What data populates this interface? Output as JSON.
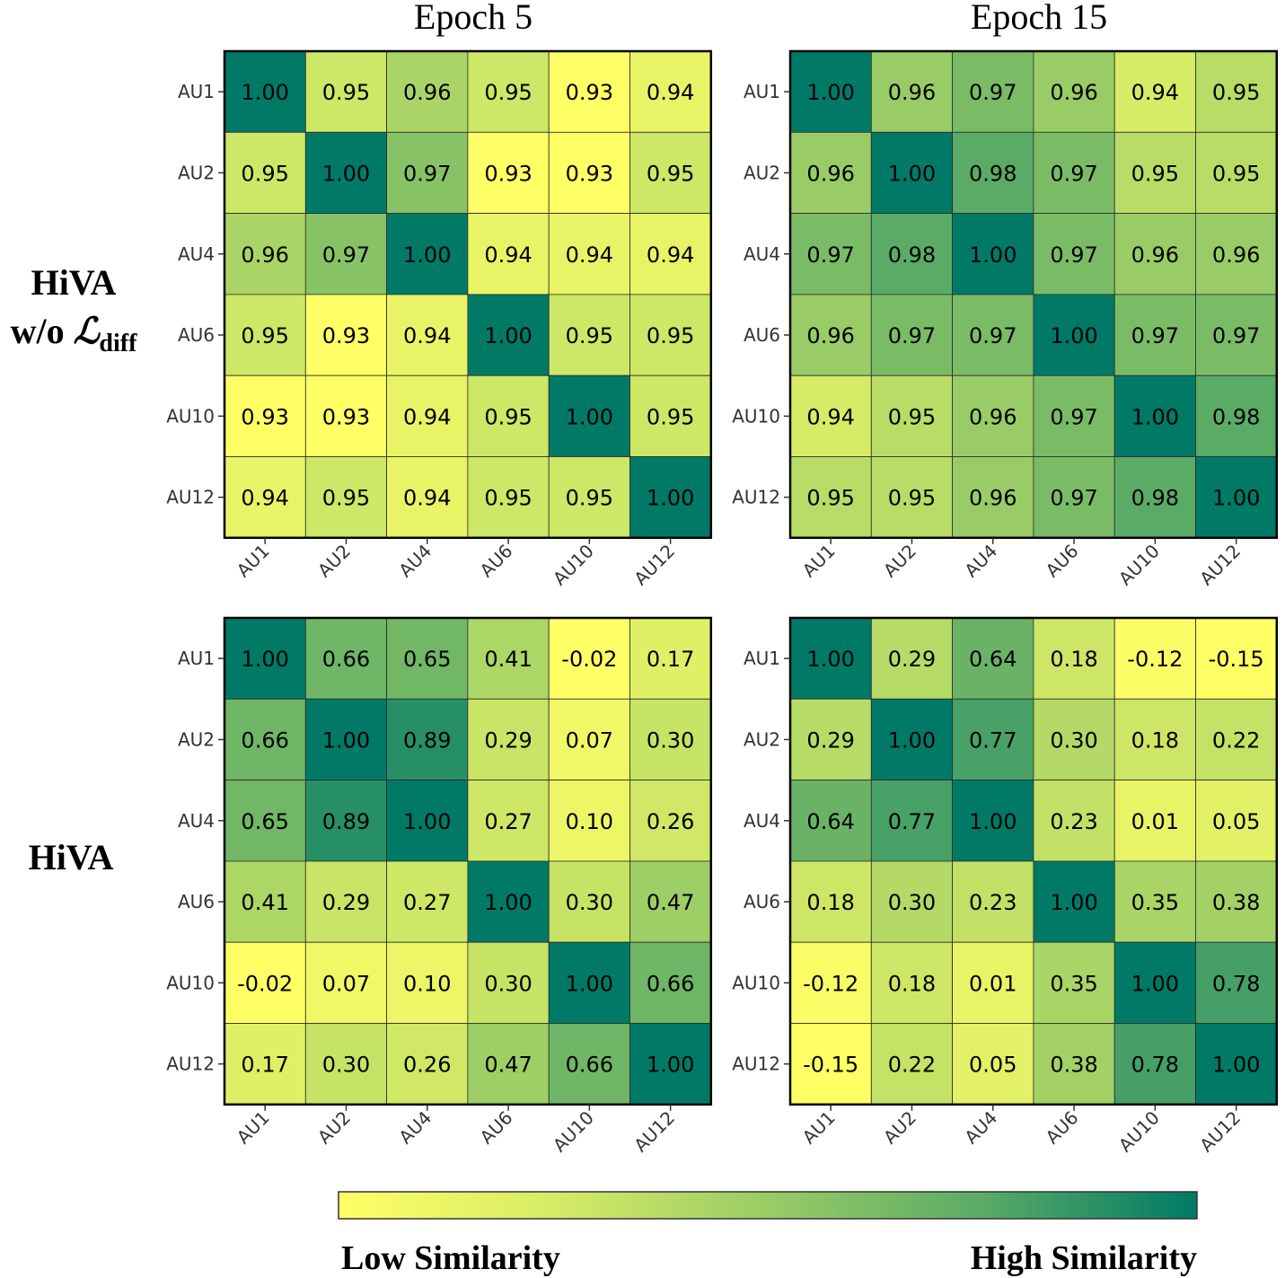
{
  "columns": [
    "Epoch 5",
    "Epoch 15"
  ],
  "rows": [
    {
      "line1": "HiVA",
      "line2_prefix": "w/o ",
      "line2_symbol": "ℒ",
      "line2_sub": "diff"
    },
    {
      "line1": "HiVA"
    }
  ],
  "colorbar": {
    "low_label": "Low Similarity",
    "high_label": "High Similarity",
    "colors": [
      "#ffff66",
      "#d6eb66",
      "#99cc66",
      "#5aab66",
      "#007a66"
    ]
  },
  "chart_data": [
    {
      "type": "heatmap",
      "title": "Epoch 5",
      "row_label": "HiVA w/o ℒdiff",
      "x": [
        "AU1",
        "AU2",
        "AU4",
        "AU6",
        "AU10",
        "AU12"
      ],
      "y": [
        "AU1",
        "AU2",
        "AU4",
        "AU6",
        "AU10",
        "AU12"
      ],
      "values": [
        [
          1.0,
          0.95,
          0.96,
          0.95,
          0.93,
          0.94
        ],
        [
          0.95,
          1.0,
          0.97,
          0.93,
          0.93,
          0.95
        ],
        [
          0.96,
          0.97,
          1.0,
          0.94,
          0.94,
          0.94
        ],
        [
          0.95,
          0.93,
          0.94,
          1.0,
          0.95,
          0.95
        ],
        [
          0.93,
          0.93,
          0.94,
          0.95,
          1.0,
          0.95
        ],
        [
          0.94,
          0.95,
          0.94,
          0.95,
          0.95,
          1.0
        ]
      ],
      "vmin": 0.93,
      "vmax": 1.0
    },
    {
      "type": "heatmap",
      "title": "Epoch 15",
      "row_label": "HiVA w/o ℒdiff",
      "x": [
        "AU1",
        "AU2",
        "AU4",
        "AU6",
        "AU10",
        "AU12"
      ],
      "y": [
        "AU1",
        "AU2",
        "AU4",
        "AU6",
        "AU10",
        "AU12"
      ],
      "values": [
        [
          1.0,
          0.96,
          0.97,
          0.96,
          0.94,
          0.95
        ],
        [
          0.96,
          1.0,
          0.98,
          0.97,
          0.95,
          0.95
        ],
        [
          0.97,
          0.98,
          1.0,
          0.97,
          0.96,
          0.96
        ],
        [
          0.96,
          0.97,
          0.97,
          1.0,
          0.97,
          0.97
        ],
        [
          0.94,
          0.95,
          0.96,
          0.97,
          1.0,
          0.98
        ],
        [
          0.95,
          0.95,
          0.96,
          0.97,
          0.98,
          1.0
        ]
      ],
      "vmin": 0.92,
      "vmax": 1.0
    },
    {
      "type": "heatmap",
      "title": "Epoch 5",
      "row_label": "HiVA",
      "x": [
        "AU1",
        "AU2",
        "AU4",
        "AU6",
        "AU10",
        "AU12"
      ],
      "y": [
        "AU1",
        "AU2",
        "AU4",
        "AU6",
        "AU10",
        "AU12"
      ],
      "values": [
        [
          1.0,
          0.66,
          0.65,
          0.41,
          -0.02,
          0.17
        ],
        [
          0.66,
          1.0,
          0.89,
          0.29,
          0.07,
          0.3
        ],
        [
          0.65,
          0.89,
          1.0,
          0.27,
          0.1,
          0.26
        ],
        [
          0.41,
          0.29,
          0.27,
          1.0,
          0.3,
          0.47
        ],
        [
          -0.02,
          0.07,
          0.1,
          0.3,
          1.0,
          0.66
        ],
        [
          0.17,
          0.3,
          0.26,
          0.47,
          0.66,
          1.0
        ]
      ],
      "vmin": -0.02,
      "vmax": 1.0
    },
    {
      "type": "heatmap",
      "title": "Epoch 15",
      "row_label": "HiVA",
      "x": [
        "AU1",
        "AU2",
        "AU4",
        "AU6",
        "AU10",
        "AU12"
      ],
      "y": [
        "AU1",
        "AU2",
        "AU4",
        "AU6",
        "AU10",
        "AU12"
      ],
      "values": [
        [
          1.0,
          0.29,
          0.64,
          0.18,
          -0.12,
          -0.15
        ],
        [
          0.29,
          1.0,
          0.77,
          0.3,
          0.18,
          0.22
        ],
        [
          0.64,
          0.77,
          1.0,
          0.23,
          0.01,
          0.05
        ],
        [
          0.18,
          0.3,
          0.23,
          1.0,
          0.35,
          0.38
        ],
        [
          -0.12,
          0.18,
          0.01,
          0.35,
          1.0,
          0.78
        ],
        [
          -0.15,
          0.22,
          0.05,
          0.38,
          0.78,
          1.0
        ]
      ],
      "vmin": -0.15,
      "vmax": 1.0
    }
  ]
}
